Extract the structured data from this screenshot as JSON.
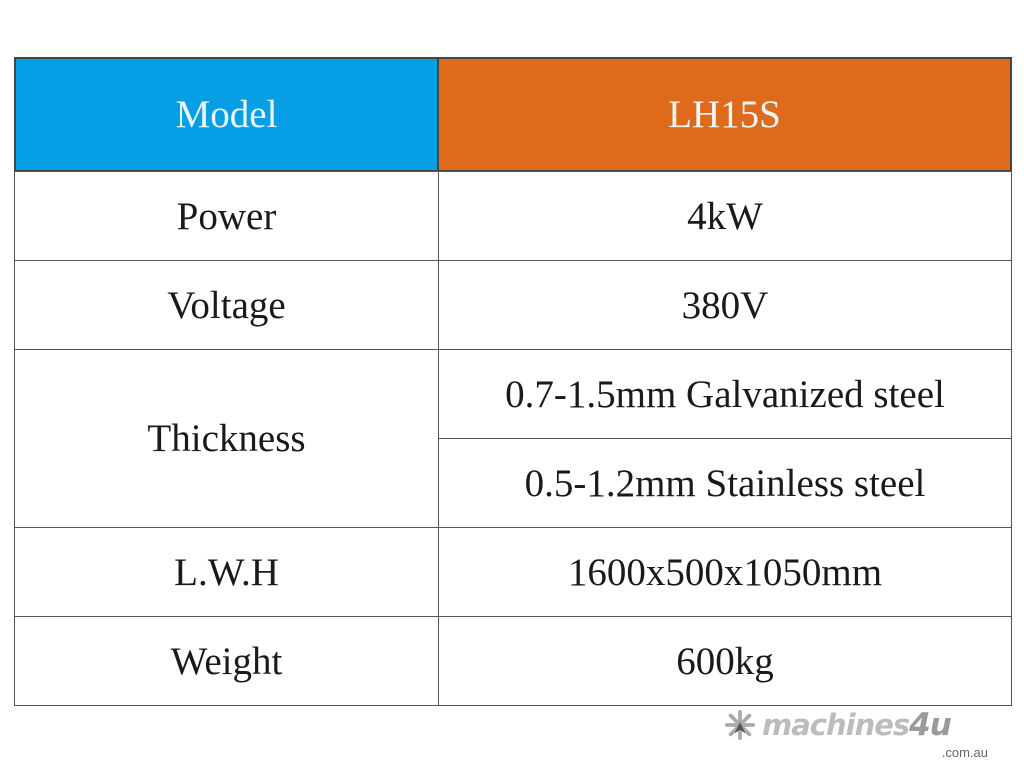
{
  "header": {
    "label": "Model",
    "value": "LH15S",
    "label_color": "#069fe6",
    "value_color": "#e06a1c"
  },
  "rows": [
    {
      "label": "Power",
      "values": [
        "4kW"
      ]
    },
    {
      "label": "Voltage",
      "values": [
        "380V"
      ]
    },
    {
      "label": "Thickness",
      "values": [
        "0.7-1.5mm Galvanized steel",
        "0.5-1.2mm Stainless steel"
      ]
    },
    {
      "label": "L.W.H",
      "values": [
        "1600x500x1050mm"
      ]
    },
    {
      "label": "Weight",
      "values": [
        "600kg"
      ]
    }
  ],
  "watermark": {
    "brand": "machines",
    "brand_number": "4u",
    "domain": ".com.au",
    "icon": "snowflake-arrow-icon"
  }
}
